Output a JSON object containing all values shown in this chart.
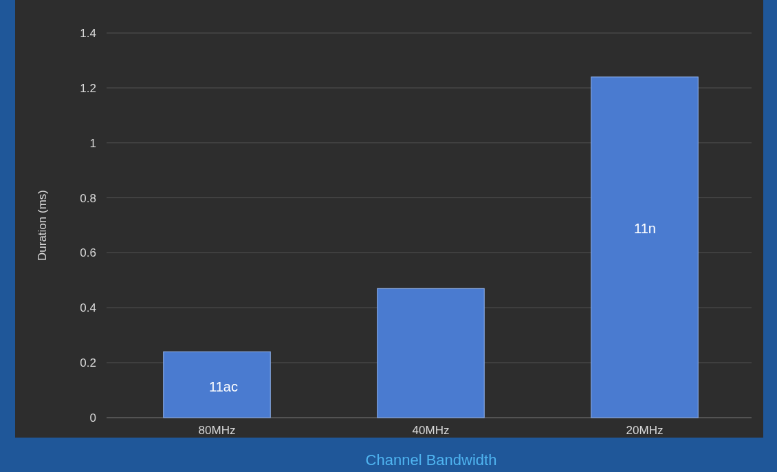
{
  "chart_data": {
    "type": "bar",
    "xlabel": "Channel Bandwidth",
    "ylabel": "Duration (ms)",
    "categories": [
      "80MHz",
      "40MHz",
      "20MHz"
    ],
    "values": [
      0.24,
      0.47,
      1.24
    ],
    "color": "#4a7bd0",
    "ylim": [
      0,
      1.4
    ],
    "yticks": [
      0,
      0.2,
      0.4,
      0.6,
      0.8,
      1,
      1.2,
      1.4
    ],
    "grid": "y",
    "annotations": [
      "11ac",
      "11n"
    ]
  }
}
